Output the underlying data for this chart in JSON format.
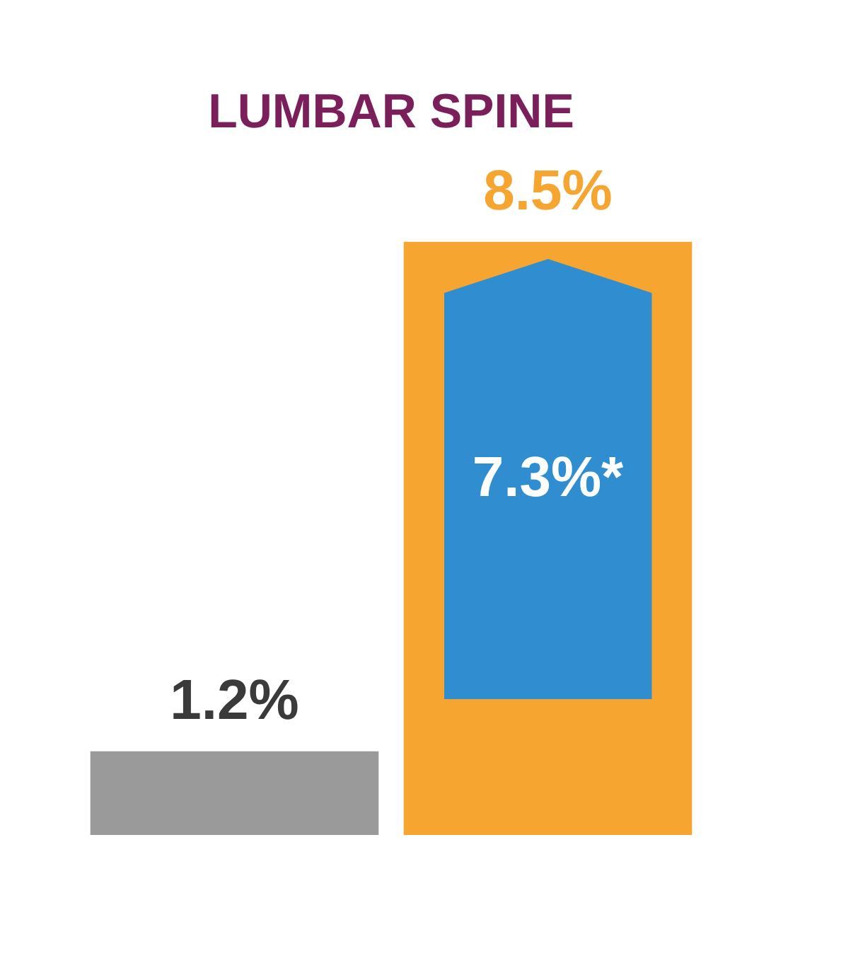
{
  "chart_data": {
    "type": "bar",
    "title": "LUMBAR SPINE",
    "categories": [
      null,
      null
    ],
    "colors": [
      "#9a9a9a",
      "#f5a530"
    ],
    "values": [
      1.2,
      8.5
    ],
    "value_labels": [
      "1.2%",
      "8.5%"
    ],
    "annotations": [
      "7.3%*"
    ]
  }
}
